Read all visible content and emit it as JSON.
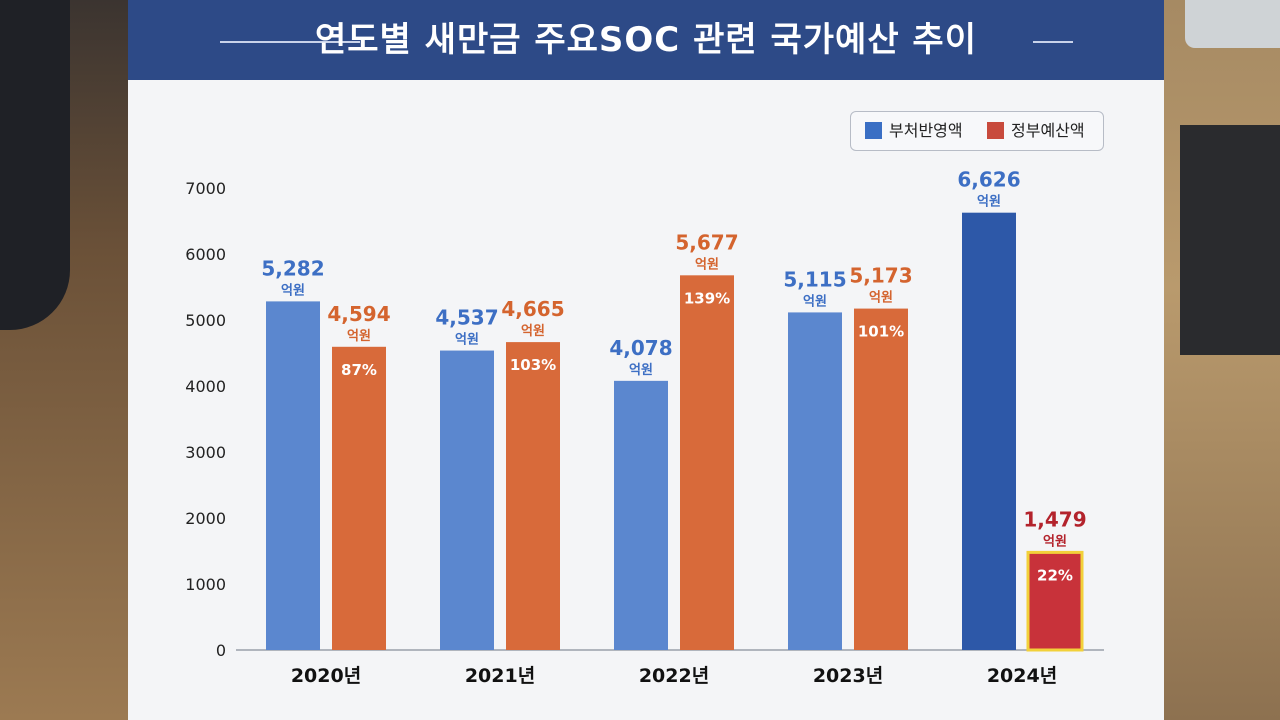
{
  "title": "연도별 새만금 주요SOC 관련 국가예산 추이",
  "legend": {
    "items": [
      {
        "label": "부처반영액",
        "color": "#3a6fc4"
      },
      {
        "label": "정부예산액",
        "color": "#c84a3c"
      }
    ]
  },
  "colors": {
    "header": "#2d4a87",
    "blue_bar": "#5b87cf",
    "blue_bar_dark": "#2d58a8",
    "orange_bar": "#d86a3a",
    "red_bar": "#c8323a",
    "blue_label": "#3d6fc4",
    "orange_label": "#d4642e",
    "red_label": "#b3232c",
    "highlight": "#f2d13a"
  },
  "chart_data": {
    "type": "bar",
    "categories": [
      "2020년",
      "2021년",
      "2022년",
      "2023년",
      "2024년"
    ],
    "series": [
      {
        "name": "부처반영액",
        "values": [
          5282,
          4537,
          4078,
          5115,
          6626
        ],
        "value_labels": [
          "5,282",
          "4,537",
          "4,078",
          "5,115",
          "6,626"
        ]
      },
      {
        "name": "정부예산액",
        "values": [
          4594,
          4665,
          5677,
          5173,
          1479
        ],
        "value_labels": [
          "4,594",
          "4,665",
          "5,677",
          "5,173",
          "1,479"
        ]
      }
    ],
    "unit_label": "억원",
    "ratio_labels": [
      "87%",
      "103%",
      "139%",
      "101%",
      "22%"
    ],
    "yticks": [
      "7000",
      "6000",
      "5000",
      "4000",
      "3000",
      "2000",
      "1000",
      "0"
    ],
    "ylim": [
      0,
      7000
    ],
    "grid": false,
    "legend_position": "top-right"
  }
}
